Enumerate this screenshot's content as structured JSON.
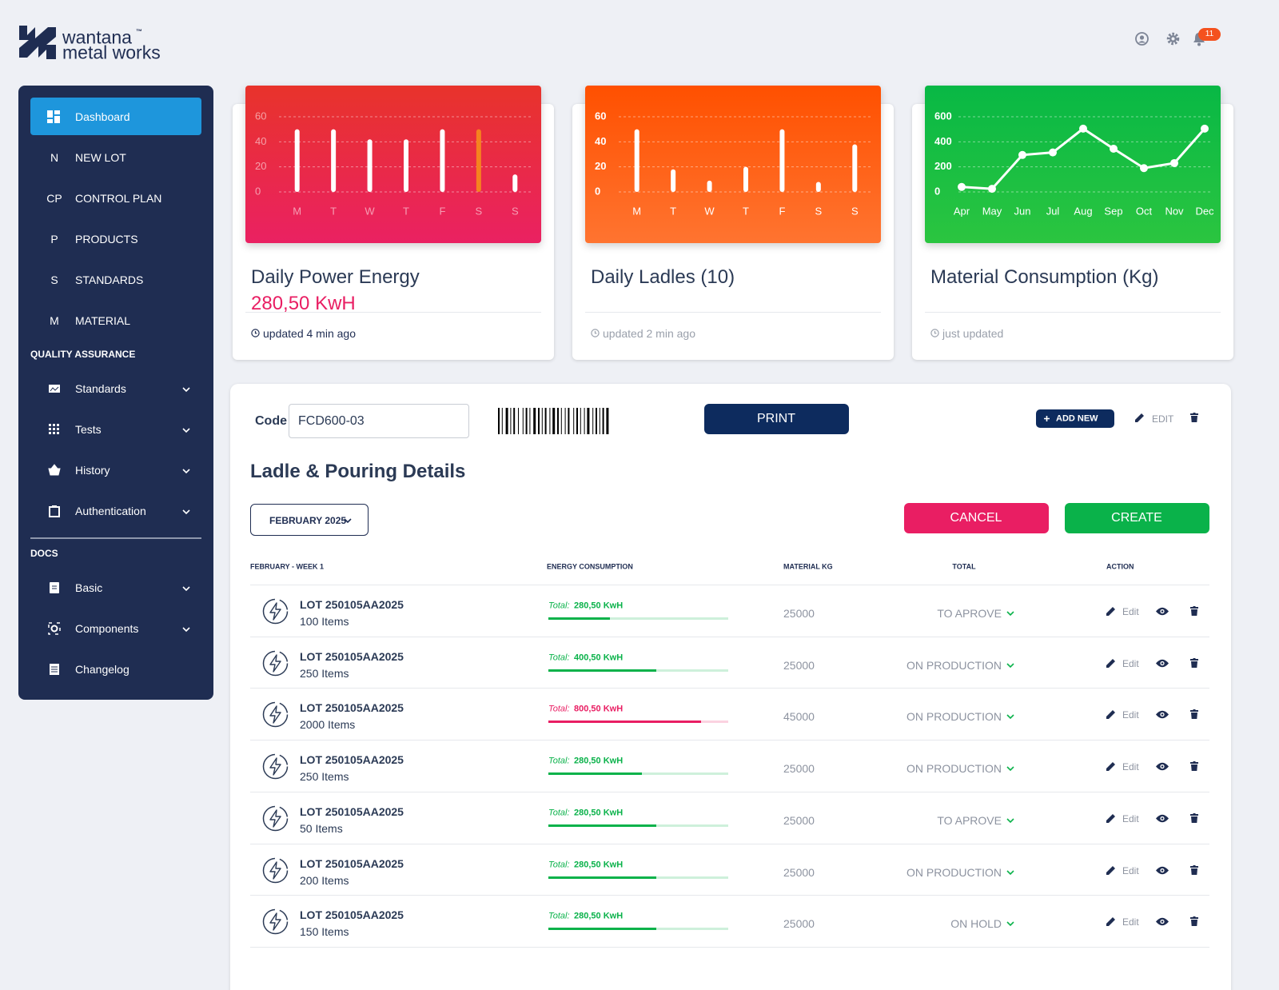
{
  "header": {
    "brand": "wantana",
    "brand_mark": "™",
    "brand_sub": "metal works",
    "notification_count": "11"
  },
  "sidebar": {
    "dashboard": "Dashboard",
    "items": [
      [
        "N",
        "NEW LOT"
      ],
      [
        "CP",
        "CONTROL PLAN"
      ],
      [
        "P",
        "PRODUCTS"
      ],
      [
        "S",
        "STANDARDS"
      ],
      [
        "M",
        "MATERIAL"
      ]
    ],
    "qa_title": "QUALITY ASSURANCE",
    "qa_items": [
      "Standards",
      "Tests",
      "History",
      "Authentication"
    ],
    "docs_title": "DOCS",
    "docs_items": [
      "Basic",
      "Components",
      "Changelog"
    ]
  },
  "cards": [
    {
      "title": "Daily Power Energy",
      "value": "280,50 KwH",
      "status": "updated 4 min ago"
    },
    {
      "title": "Daily Ladles (10)",
      "status": "updated 2 min ago"
    },
    {
      "title": "Material Consumption (Kg)",
      "status": "just updated"
    }
  ],
  "chart_data": [
    {
      "type": "bar",
      "categories": [
        "M",
        "T",
        "W",
        "T",
        "F",
        "S",
        "S"
      ],
      "values": [
        50,
        50,
        42,
        42,
        50,
        50,
        14
      ],
      "colors": [
        "#ffffff",
        "#ffffff",
        "#ffffff",
        "#ffffff",
        "#ffffff",
        "#f5821f",
        "#ffffff"
      ],
      "ylim": [
        0,
        60
      ],
      "yticks": [
        0,
        20,
        40,
        60
      ],
      "grid": true
    },
    {
      "type": "bar",
      "categories": [
        "M",
        "T",
        "W",
        "T",
        "F",
        "S",
        "S"
      ],
      "values": [
        50,
        18,
        9,
        20,
        50,
        8,
        38
      ],
      "color": "#ffffff",
      "ylim": [
        0,
        60
      ],
      "yticks": [
        0,
        20,
        40,
        60
      ],
      "grid": true
    },
    {
      "type": "line",
      "categories": [
        "Apr",
        "May",
        "Jun",
        "Jul",
        "Aug",
        "Sep",
        "Oct",
        "Nov",
        "Dec"
      ],
      "values": [
        40,
        25,
        295,
        315,
        505,
        345,
        190,
        230,
        505
      ],
      "color": "#ffffff",
      "ylim": [
        0,
        600
      ],
      "yticks": [
        0,
        200,
        400,
        600
      ],
      "grid": true
    }
  ],
  "details": {
    "code_label": "Code",
    "code": "FCD600-03",
    "print": "PRINT",
    "add_new": "ADD NEW",
    "edit": "EDIT",
    "title": "Ladle & Pouring Details",
    "month": "FEBRUARY 2025",
    "cancel": "CANCEL",
    "create": "CREATE"
  },
  "table": {
    "columns": [
      "FEBRUARY - WEEK 1",
      "ENERGY CONSUMPTION",
      "MATERIAL KG",
      "TOTAL",
      "ACTION"
    ],
    "rows": [
      {
        "lot": "LOT 250105AA2025",
        "items": "100 Items",
        "energy_label": "Total:",
        "energy": "280,50 KwH",
        "progress": 34,
        "color": "#0ab24a",
        "material": 25000,
        "status": "TO APROVE",
        "action": "Edit"
      },
      {
        "lot": "LOT 250105AA2025",
        "items": "250 Items",
        "energy_label": "Total:",
        "energy": "400,50 KwH",
        "progress": 60,
        "color": "#0ab24a",
        "material": 25000,
        "status": "ON PRODUCTION",
        "action": "Edit"
      },
      {
        "lot": "LOT 250105AA2025",
        "items": "2000 Items",
        "energy_label": "Total:",
        "energy": "800,50 KwH",
        "progress": 85,
        "color": "#e91e63",
        "material": 45000,
        "status": "ON PRODUCTION",
        "action": "Edit"
      },
      {
        "lot": "LOT 250105AA2025",
        "items": "250 Items",
        "energy_label": "Total:",
        "energy": "280,50 KwH",
        "progress": 52,
        "color": "#0ab24a",
        "material": 25000,
        "status": "ON PRODUCTION",
        "action": "Edit"
      },
      {
        "lot": "LOT 250105AA2025",
        "items": "50 Items",
        "energy_label": "Total:",
        "energy": "280,50 KwH",
        "progress": 60,
        "color": "#0ab24a",
        "material": 25000,
        "status": "TO APROVE",
        "action": "Edit"
      },
      {
        "lot": "LOT 250105AA2025",
        "items": "200 Items",
        "energy_label": "Total:",
        "energy": "280,50 KwH",
        "progress": 60,
        "color": "#0ab24a",
        "material": 25000,
        "status": "ON PRODUCTION",
        "action": "Edit"
      },
      {
        "lot": "LOT 250105AA2025",
        "items": "150 Items",
        "energy_label": "Total:",
        "energy": "280,50 KwH",
        "progress": 60,
        "color": "#0ab24a",
        "material": 25000,
        "status": "ON HOLD",
        "action": "Edit"
      }
    ]
  }
}
